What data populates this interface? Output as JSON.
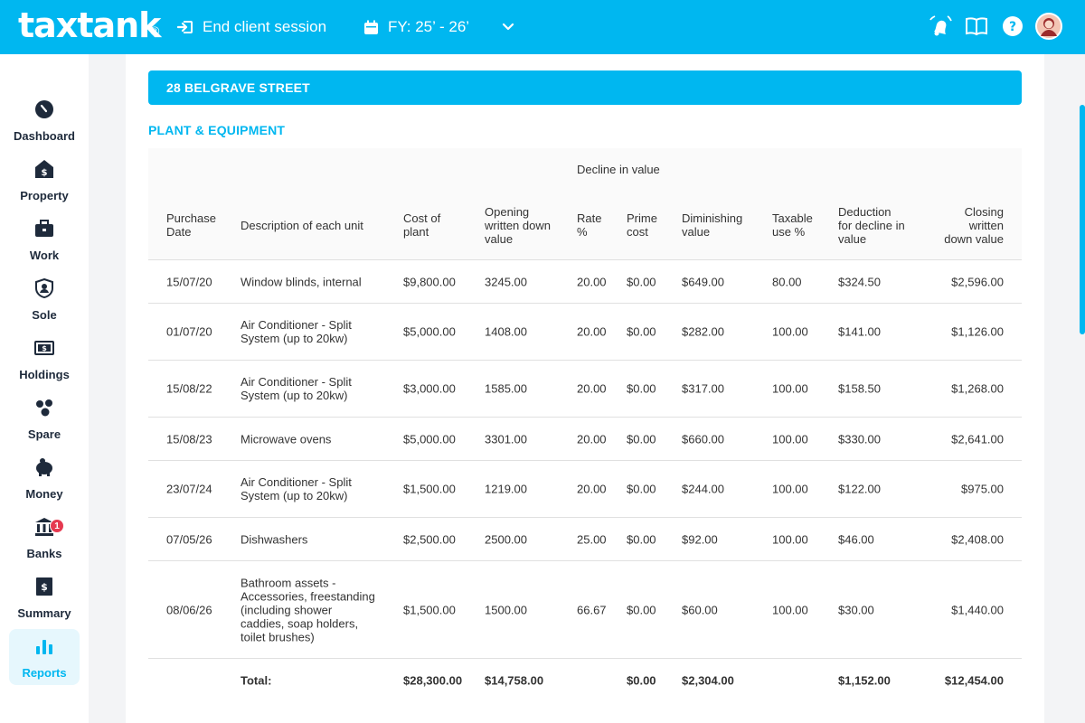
{
  "header": {
    "logo": "taxtank",
    "logo_mark": "®",
    "end_session": "End client session",
    "fy": "FY: 25’ - 26’"
  },
  "sidebar": {
    "items": [
      {
        "label": "Dashboard",
        "icon": "dashboard-icon"
      },
      {
        "label": "Property",
        "icon": "property-icon"
      },
      {
        "label": "Work",
        "icon": "work-icon"
      },
      {
        "label": "Sole",
        "icon": "sole-icon"
      },
      {
        "label": "Holdings",
        "icon": "holdings-icon"
      },
      {
        "label": "Spare",
        "icon": "spare-icon"
      },
      {
        "label": "Money",
        "icon": "money-icon"
      },
      {
        "label": "Banks",
        "icon": "banks-icon",
        "badge": "1"
      },
      {
        "label": "Summary",
        "icon": "summary-icon"
      },
      {
        "label": "Reports",
        "icon": "reports-icon",
        "active": true
      }
    ]
  },
  "main": {
    "property_title": "28 BELGRAVE STREET",
    "section_title": "PLANT & EQUIPMENT",
    "group_header": "Decline in value",
    "columns": {
      "purchase_date": "Purchase\nDate",
      "description": "Description of each unit",
      "cost": "Cost of\nplant",
      "opening": "Opening\nwritten down\nvalue",
      "rate": "Rate\n%",
      "prime": "Prime\ncost",
      "diminishing": "Diminishing\nvalue",
      "taxable": "Taxable\nuse %",
      "deduction": "Deduction\nfor decline in\nvalue",
      "closing": "Closing\nwritten\ndown value"
    },
    "rows": [
      {
        "date": "15/07/20",
        "desc": "Window blinds, internal",
        "cost": "$9,800.00",
        "opening": "3245.00",
        "rate": "20.00",
        "prime": "$0.00",
        "dim": "$649.00",
        "taxable": "80.00",
        "deduction": "$324.50",
        "closing": "$2,596.00"
      },
      {
        "date": "01/07/20",
        "desc": "Air Conditioner - Split\nSystem (up to 20kw)",
        "cost": "$5,000.00",
        "opening": "1408.00",
        "rate": "20.00",
        "prime": "$0.00",
        "dim": "$282.00",
        "taxable": "100.00",
        "deduction": "$141.00",
        "closing": "$1,126.00"
      },
      {
        "date": "15/08/22",
        "desc": "Air Conditioner - Split\nSystem (up to 20kw)",
        "cost": "$3,000.00",
        "opening": "1585.00",
        "rate": "20.00",
        "prime": "$0.00",
        "dim": "$317.00",
        "taxable": "100.00",
        "deduction": "$158.50",
        "closing": "$1,268.00"
      },
      {
        "date": "15/08/23",
        "desc": "Microwave ovens",
        "cost": "$5,000.00",
        "opening": "3301.00",
        "rate": "20.00",
        "prime": "$0.00",
        "dim": "$660.00",
        "taxable": "100.00",
        "deduction": "$330.00",
        "closing": "$2,641.00"
      },
      {
        "date": "23/07/24",
        "desc": "Air Conditioner - Split\nSystem (up to 20kw)",
        "cost": "$1,500.00",
        "opening": "1219.00",
        "rate": "20.00",
        "prime": "$0.00",
        "dim": "$244.00",
        "taxable": "100.00",
        "deduction": "$122.00",
        "closing": "$975.00"
      },
      {
        "date": "07/05/26",
        "desc": "Dishwashers",
        "cost": "$2,500.00",
        "opening": "2500.00",
        "rate": "25.00",
        "prime": "$0.00",
        "dim": "$92.00",
        "taxable": "100.00",
        "deduction": "$46.00",
        "closing": "$2,408.00"
      },
      {
        "date": "08/06/26",
        "desc": "Bathroom assets -\nAccessories, freestanding\n(including shower\ncaddies, soap holders,\ntoilet brushes)",
        "cost": "$1,500.00",
        "opening": "1500.00",
        "rate": "66.67",
        "prime": "$0.00",
        "dim": "$60.00",
        "taxable": "100.00",
        "deduction": "$30.00",
        "closing": "$1,440.00"
      }
    ],
    "total": {
      "label": "Total:",
      "cost": "$28,300.00",
      "opening": "$14,758.00",
      "prime": "$0.00",
      "dim": "$2,304.00",
      "deduction": "$1,152.00",
      "closing": "$12,454.00"
    }
  },
  "colors": {
    "accent": "#00b7f0",
    "badge": "#e53950"
  }
}
